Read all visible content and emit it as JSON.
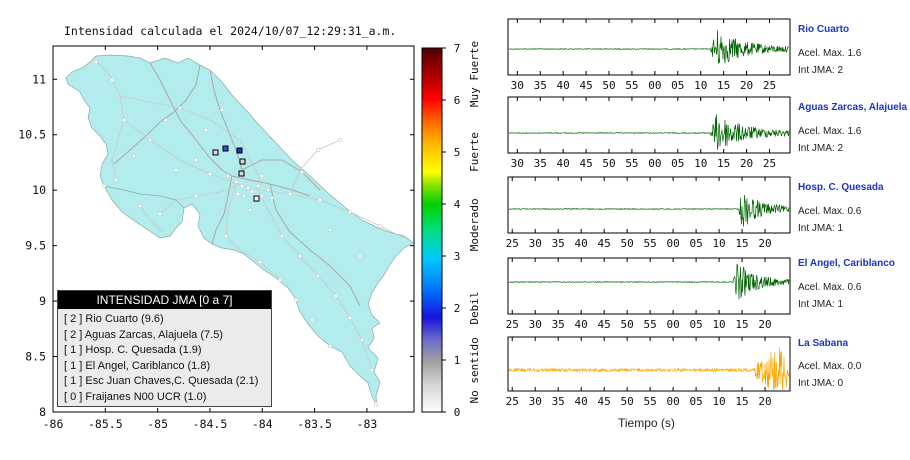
{
  "header": {
    "title": "Intensidad calculada el 2024/10/07_12:29:31_a.m."
  },
  "map": {
    "x_ticks": [
      "-86",
      "-85.5",
      "-85",
      "-84.5",
      "-84",
      "-83.5",
      "-83"
    ],
    "y_ticks": [
      "11",
      "10.5",
      "10",
      "9.5",
      "9",
      "8.5",
      "8"
    ],
    "land_color": "#b2ecec",
    "sea_color": "#ffffff"
  },
  "colorbar": {
    "ticks": [
      "0",
      "1",
      "2",
      "3",
      "4",
      "5",
      "6",
      "7"
    ],
    "categories": [
      "No sentido",
      "Debil",
      "Moderado",
      "Fuerte",
      "Muy Fuerte"
    ]
  },
  "legend": {
    "title": "INTENSIDAD JMA [0 a 7]",
    "entries": [
      {
        "text": "[ 2 ] Rio Cuarto (9.6)"
      },
      {
        "text": "[ 2 ] Aguas Zarcas, Alajuela (7.5)"
      },
      {
        "text": "[ 1 ] Hosp. C. Quesada (1.9)"
      },
      {
        "text": "[ 1 ] El Angel, Cariblanco (1.8)"
      },
      {
        "text": "[ 1 ] Esc Juan Chaves,C. Quesada (2.1)"
      },
      {
        "text": "[ 0 ] Fraijanes N00 UCR (1.0)"
      }
    ]
  },
  "waveforms": [
    {
      "name": "Rio Cuarto",
      "accel": "Acel. Max. 1.6",
      "jma": "Int JMA: 2",
      "color": "#006400",
      "ticks": [
        "30",
        "35",
        "40",
        "45",
        "50",
        "55",
        "00",
        "05",
        "10",
        "15",
        "20",
        "25"
      ]
    },
    {
      "name": "Aguas Zarcas, Alajuela",
      "accel": "Acel. Max. 1.6",
      "jma": "Int JMA: 2",
      "color": "#006400",
      "ticks": [
        "30",
        "35",
        "40",
        "45",
        "50",
        "55",
        "00",
        "05",
        "10",
        "15",
        "20",
        "25"
      ]
    },
    {
      "name": "Hosp. C. Quesada",
      "accel": "Acel. Max. 0.6",
      "jma": "Int JMA: 1",
      "color": "#006400",
      "ticks": [
        "25",
        "30",
        "35",
        "40",
        "45",
        "50",
        "55",
        "00",
        "05",
        "10",
        "15",
        "20"
      ]
    },
    {
      "name": "El Angel, Cariblanco",
      "accel": "Acel. Max. 0.6",
      "jma": "Int JMA: 1",
      "color": "#006400",
      "ticks": [
        "25",
        "30",
        "35",
        "40",
        "45",
        "50",
        "55",
        "00",
        "05",
        "10",
        "15",
        "20"
      ]
    },
    {
      "name": "La Sabana",
      "accel": "Acel. Max. 0.0",
      "jma": "Int JMA: 0",
      "color": "#ffa500",
      "ticks": [
        "25",
        "30",
        "35",
        "40",
        "45",
        "50",
        "55",
        "00",
        "05",
        "10",
        "15",
        "20"
      ]
    }
  ],
  "xaxis_label": "Tiempo (s)",
  "chart_data": {
    "type": "scatter",
    "xlim": [
      -86,
      -82.55
    ],
    "ylim": [
      8,
      11.3
    ],
    "stations": [
      {
        "name": "Rio Cuarto",
        "jma": 2
      },
      {
        "name": "Aguas Zarcas, Alajuela",
        "jma": 2
      },
      {
        "name": "Hosp. C. Quesada",
        "jma": 1
      },
      {
        "name": "El Angel, Cariblanco",
        "jma": 1
      },
      {
        "name": "Esc Juan Chaves,C. Quesada",
        "jma": 1
      },
      {
        "name": "Fraijanes N00 UCR",
        "jma": 0
      }
    ],
    "legend_position": "bottom-left"
  }
}
